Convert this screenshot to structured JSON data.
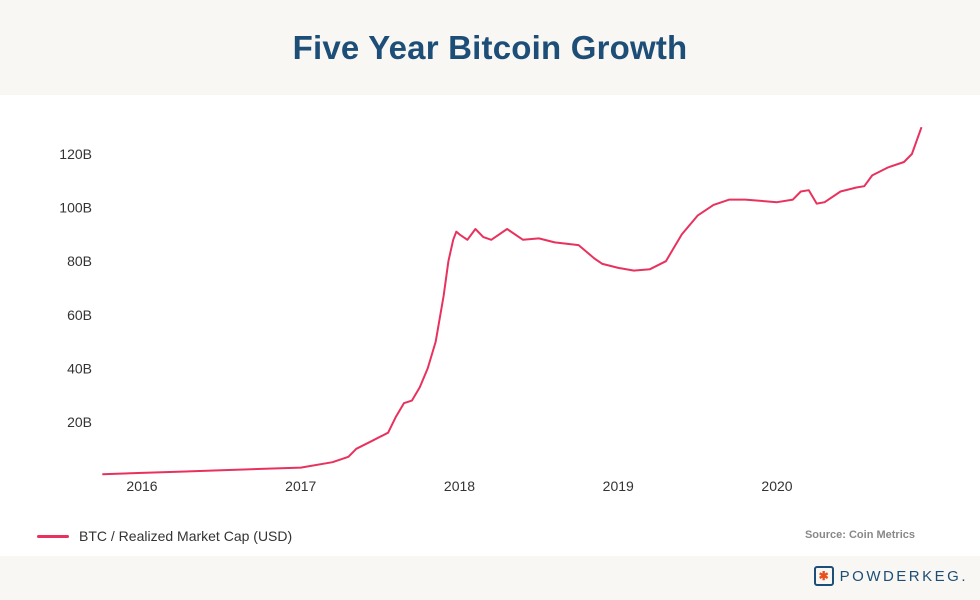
{
  "header": {
    "title": "Five Year Bitcoin Growth"
  },
  "legend": {
    "label": "BTC / Realized Market Cap (USD)"
  },
  "source": "Source: Coin Metrics",
  "brand": {
    "name": "POWDERKEG."
  },
  "chart_data": {
    "type": "line",
    "title": "Five Year Bitcoin Growth",
    "xlabel": "",
    "ylabel": "",
    "x_unit": "year",
    "xlim": [
      2015.75,
      2020.91
    ],
    "ylim": [
      0,
      130
    ],
    "y_ticks": [
      20,
      40,
      60,
      80,
      100,
      120
    ],
    "y_tick_labels": [
      "20B",
      "40B",
      "60B",
      "80B",
      "100B",
      "120B"
    ],
    "x_ticks": [
      2016,
      2017,
      2018,
      2019,
      2020
    ],
    "x_tick_labels": [
      "2016",
      "2017",
      "2018",
      "2019",
      "2020"
    ],
    "grid": false,
    "legend_position": "bottom-left",
    "color": "#e8325d",
    "series": [
      {
        "name": "BTC / Realized Market Cap (USD)",
        "x": [
          2015.75,
          2016.0,
          2016.25,
          2016.5,
          2016.75,
          2017.0,
          2017.2,
          2017.3,
          2017.35,
          2017.45,
          2017.55,
          2017.6,
          2017.65,
          2017.7,
          2017.75,
          2017.8,
          2017.85,
          2017.9,
          2017.93,
          2017.96,
          2017.98,
          2018.0,
          2018.05,
          2018.1,
          2018.15,
          2018.2,
          2018.3,
          2018.4,
          2018.5,
          2018.6,
          2018.75,
          2018.85,
          2018.9,
          2019.0,
          2019.1,
          2019.2,
          2019.3,
          2019.4,
          2019.5,
          2019.6,
          2019.7,
          2019.8,
          2019.9,
          2020.0,
          2020.1,
          2020.15,
          2020.2,
          2020.25,
          2020.3,
          2020.4,
          2020.5,
          2020.55,
          2020.6,
          2020.7,
          2020.8,
          2020.85,
          2020.91
        ],
        "y": [
          0.5,
          1.0,
          1.5,
          2.0,
          2.5,
          3.0,
          5.0,
          7.0,
          10.0,
          13.0,
          16.0,
          22.0,
          27.0,
          28.0,
          33.0,
          40.0,
          50.0,
          67.0,
          80.0,
          88.0,
          91.0,
          90.0,
          88.0,
          92.0,
          89.0,
          88.0,
          92.0,
          88.0,
          88.5,
          87.0,
          86.0,
          81.0,
          79.0,
          77.5,
          76.5,
          77.0,
          80.0,
          90.0,
          97.0,
          101.0,
          103.0,
          103.0,
          102.5,
          102.0,
          103.0,
          106.0,
          106.5,
          101.5,
          102.0,
          106.0,
          107.5,
          108.0,
          112.0,
          115.0,
          117.0,
          120.0,
          130.0
        ]
      }
    ]
  }
}
